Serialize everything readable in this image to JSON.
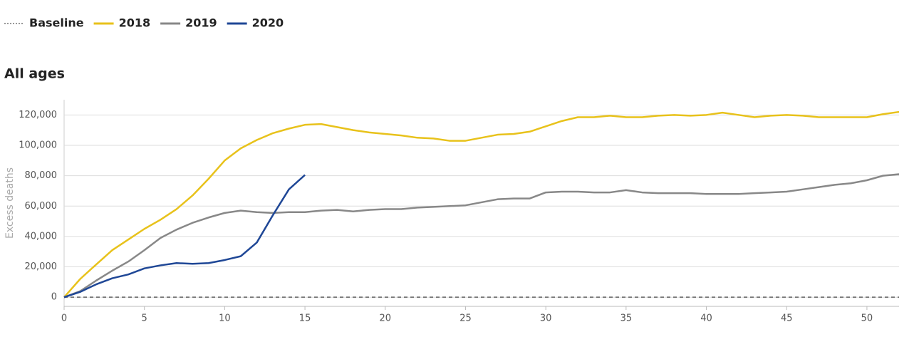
{
  "chart_data": {
    "type": "line",
    "title": "All ages",
    "y_label": "Excess deaths",
    "x": [
      0,
      1,
      2,
      3,
      4,
      5,
      6,
      7,
      8,
      9,
      10,
      11,
      12,
      13,
      14,
      15,
      16,
      17,
      18,
      19,
      20,
      21,
      22,
      23,
      24,
      25,
      26,
      27,
      28,
      29,
      30,
      31,
      32,
      33,
      34,
      35,
      36,
      37,
      38,
      39,
      40,
      41,
      42,
      43,
      44,
      45,
      46,
      47,
      48,
      49,
      50,
      51,
      52
    ],
    "series": [
      {
        "name": "Baseline",
        "color": "#777777",
        "dashed": true,
        "values": [
          0,
          0,
          0,
          0,
          0,
          0,
          0,
          0,
          0,
          0,
          0,
          0,
          0,
          0,
          0,
          0,
          0,
          0,
          0,
          0,
          0,
          0,
          0,
          0,
          0,
          0,
          0,
          0,
          0,
          0,
          0,
          0,
          0,
          0,
          0,
          0,
          0,
          0,
          0,
          0,
          0,
          0,
          0,
          0,
          0,
          0,
          0,
          0,
          0,
          0,
          0,
          0,
          0
        ]
      },
      {
        "name": "2018",
        "color": "#e8c21b",
        "values": [
          0,
          12000,
          21600,
          31000,
          38000,
          45000,
          51000,
          58000,
          67000,
          78000,
          90000,
          98000,
          103500,
          108000,
          111000,
          113500,
          114000,
          112000,
          110000,
          108500,
          107500,
          106500,
          105000,
          104500,
          103000,
          103000,
          105000,
          107000,
          107500,
          109000,
          112500,
          116000,
          118500,
          118500,
          119500,
          118500,
          118500,
          119500,
          120000,
          119500,
          120000,
          121500,
          120000,
          118500,
          119500,
          120000,
          119500,
          118500,
          118500,
          118500,
          118500,
          120500,
          122000
        ]
      },
      {
        "name": "2019",
        "color": "#888888",
        "values": [
          0,
          4000,
          11000,
          17500,
          23500,
          31000,
          39000,
          44500,
          49000,
          52500,
          55500,
          57000,
          56000,
          55500,
          56000,
          56000,
          57000,
          57500,
          56500,
          57500,
          58000,
          58000,
          59000,
          59500,
          60000,
          60500,
          62500,
          64500,
          65000,
          65000,
          69000,
          69500,
          69500,
          69000,
          69000,
          70500,
          69000,
          68500,
          68500,
          68500,
          68000,
          68000,
          68000,
          68500,
          69000,
          69500,
          71000,
          72500,
          74000,
          75000,
          77000,
          80000,
          81000
        ]
      },
      {
        "name": "2020",
        "color": "#1f4796",
        "values": [
          0,
          3500,
          8500,
          12500,
          15000,
          19000,
          21000,
          22500,
          22000,
          22500,
          24500,
          27000,
          36000,
          54000,
          71000,
          80500,
          null,
          null,
          null,
          null,
          null,
          null,
          null,
          null,
          null,
          null,
          null,
          null,
          null,
          null,
          null,
          null,
          null,
          null,
          null,
          null,
          null,
          null,
          null,
          null,
          null,
          null,
          null,
          null,
          null,
          null,
          null,
          null,
          null,
          null,
          null,
          null,
          null
        ]
      }
    ],
    "xlim": [
      0,
      52
    ],
    "xticks": [
      0,
      5,
      10,
      15,
      20,
      25,
      30,
      35,
      40,
      45,
      50
    ],
    "ylim": [
      -6000,
      130000
    ],
    "yticks": [
      0,
      {
        "value": 20000,
        "label": "20,000"
      },
      {
        "value": 40000,
        "label": "40,000"
      },
      {
        "value": 60000,
        "label": "60,000"
      },
      {
        "value": 80000,
        "label": "80,000"
      },
      {
        "value": 100000,
        "label": "100,000"
      },
      {
        "value": 120000,
        "label": "120,000"
      }
    ],
    "grid": true
  }
}
